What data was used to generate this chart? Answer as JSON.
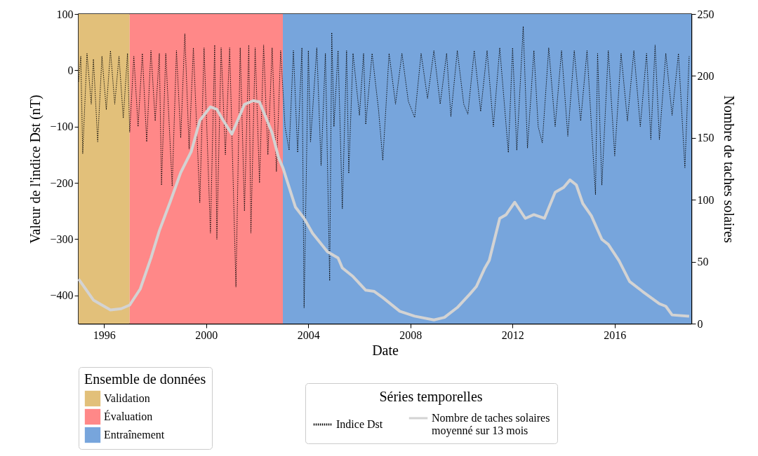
{
  "chart_data": {
    "type": "line",
    "xlabel": "Date",
    "ylabel": "Valeur de l'indice Dst (nT)",
    "y2label": "Nombre de taches solaires",
    "legend_title": "Séries temporelles",
    "annotations": [
      "Ensemble de données"
    ],
    "xlim": [
      "1995-01-01",
      "2019-01-01"
    ],
    "xticks": [
      "1996",
      "2000",
      "2004",
      "2008",
      "2012",
      "2016"
    ],
    "ylim": [
      -450,
      100
    ],
    "yticks": [
      -400,
      -300,
      -200,
      -100,
      0,
      100
    ],
    "y2lim": [
      0,
      250
    ],
    "y2ticks": [
      0,
      50,
      100,
      150,
      200,
      250
    ],
    "grid": false,
    "legend": "bottom",
    "bands": [
      {
        "axis": "x",
        "from": "1995-01-01",
        "to": "1997-01-01",
        "label": "Validation",
        "color": "#e2c07a"
      },
      {
        "axis": "x",
        "from": "1997-01-01",
        "to": "2003-01-01",
        "label": "Évaluation",
        "color": "#ff8888"
      },
      {
        "axis": "x",
        "from": "2003-01-01",
        "to": "2019-01-01",
        "label": "Entraînement",
        "color": "#77a5dc"
      }
    ],
    "series": [
      {
        "name": "Indice Dst",
        "color": "#000000",
        "type": "line",
        "line_style": "dotted",
        "axis": "y",
        "x": [
          "1995-01",
          "1995-02",
          "1995-03",
          "1995-05",
          "1995-07",
          "1995-08",
          "1995-10",
          "1995-12",
          "1996-02",
          "1996-04",
          "1996-06",
          "1996-08",
          "1996-10",
          "1996-12",
          "1997-01",
          "1997-03",
          "1997-05",
          "1997-07",
          "1997-09",
          "1997-11",
          "1998-01",
          "1998-03",
          "1998-04",
          "1998-06",
          "1998-09",
          "1998-11",
          "1999-01",
          "1999-03",
          "1999-05",
          "1999-07",
          "1999-10",
          "1999-12",
          "2000-03",
          "2000-05",
          "2000-06",
          "2000-08",
          "2000-10",
          "2000-12",
          "2001-03",
          "2001-05",
          "2001-07",
          "2001-09",
          "2001-10",
          "2001-12",
          "2002-02",
          "2002-04",
          "2002-06",
          "2002-08",
          "2002-10",
          "2002-12",
          "2003-02",
          "2003-04",
          "2003-06",
          "2003-08",
          "2003-10",
          "2003-11",
          "2004-01",
          "2004-02",
          "2004-05",
          "2004-07",
          "2004-09",
          "2004-11",
          "2004-12",
          "2005-01",
          "2005-03",
          "2005-05",
          "2005-07",
          "2005-08",
          "2005-10",
          "2006-01",
          "2006-03",
          "2006-04",
          "2006-07",
          "2006-10",
          "2006-12",
          "2007-03",
          "2007-06",
          "2007-09",
          "2007-12",
          "2008-03",
          "2008-06",
          "2008-09",
          "2008-12",
          "2009-03",
          "2009-06",
          "2009-08",
          "2009-11",
          "2010-02",
          "2010-04",
          "2010-07",
          "2010-10",
          "2011-01",
          "2011-04",
          "2011-07",
          "2011-11",
          "2012-01",
          "2012-03",
          "2012-06",
          "2012-08",
          "2012-11",
          "2013-01",
          "2013-03",
          "2013-06",
          "2013-09",
          "2013-12",
          "2014-03",
          "2014-06",
          "2014-09",
          "2014-12",
          "2015-04",
          "2015-05",
          "2015-07",
          "2015-10",
          "2016-01",
          "2016-04",
          "2016-07",
          "2016-10",
          "2017-01",
          "2017-04",
          "2017-06",
          "2017-08",
          "2017-10",
          "2018-01",
          "2018-04",
          "2018-07",
          "2018-10",
          "2018-12"
        ],
        "values": [
          -20,
          25,
          -148,
          30,
          -60,
          20,
          -127,
          25,
          -70,
          35,
          -60,
          25,
          -85,
          30,
          -110,
          25,
          -100,
          30,
          -127,
          35,
          -90,
          30,
          -204,
          30,
          -206,
          35,
          -120,
          65,
          -140,
          40,
          -235,
          40,
          -289,
          45,
          -300,
          40,
          -150,
          40,
          -385,
          40,
          -250,
          45,
          -289,
          40,
          -200,
          45,
          -150,
          40,
          -180,
          35,
          -100,
          -142,
          35,
          -146,
          40,
          -422,
          35,
          -127,
          40,
          -169,
          30,
          -374,
          67,
          -100,
          35,
          -246,
          35,
          -183,
          30,
          -80,
          30,
          -96,
          30,
          -70,
          -160,
          30,
          -60,
          30,
          -55,
          -84,
          30,
          -50,
          35,
          -60,
          30,
          -82,
          35,
          -60,
          -78,
          35,
          -73,
          35,
          -100,
          40,
          -146,
          40,
          -142,
          78,
          -138,
          35,
          -100,
          -129,
          40,
          -100,
          35,
          -117,
          35,
          -90,
          35,
          -221,
          30,
          -204,
          35,
          -152,
          30,
          -90,
          35,
          -100,
          30,
          -123,
          45,
          -123,
          30,
          -80,
          30,
          -173,
          25
        ]
      },
      {
        "name": "Nombre de taches solaires\nmoyenné sur 13 mois",
        "color": "#d3d3d3",
        "type": "line",
        "line_style": "solid",
        "axis": "y2",
        "x": [
          "1995-01",
          "1995-08",
          "1996-04",
          "1996-09",
          "1997-01",
          "1997-06",
          "1997-11",
          "1998-03",
          "1998-08",
          "1999-01",
          "1999-06",
          "1999-10",
          "2000-03",
          "2000-06",
          "2000-09",
          "2001-01",
          "2001-07",
          "2001-11",
          "2002-02",
          "2002-08",
          "2002-11",
          "2003-01",
          "2003-07",
          "2003-11",
          "2004-03",
          "2004-10",
          "2005-03",
          "2005-05",
          "2005-10",
          "2006-04",
          "2006-08",
          "2006-12",
          "2007-08",
          "2008-03",
          "2008-12",
          "2009-05",
          "2009-11",
          "2010-05",
          "2010-08",
          "2010-12",
          "2011-02",
          "2011-07",
          "2011-10",
          "2012-02",
          "2012-07",
          "2012-11",
          "2013-04",
          "2013-09",
          "2014-01",
          "2014-04",
          "2014-07",
          "2014-10",
          "2015-02",
          "2015-07",
          "2015-10",
          "2016-03",
          "2016-08",
          "2017-02",
          "2017-10",
          "2018-01",
          "2018-04",
          "2018-12"
        ],
        "values": [
          36,
          19,
          11,
          12,
          15,
          28,
          53,
          75,
          98,
          122,
          139,
          164,
          175,
          173,
          164,
          153,
          177,
          180,
          179,
          154,
          134,
          126,
          94,
          85,
          73,
          58,
          53,
          45,
          38,
          27,
          26,
          21,
          10,
          6,
          3,
          5,
          13,
          24,
          30,
          45,
          51,
          85,
          88,
          98,
          85,
          88,
          85,
          106,
          110,
          116,
          112,
          97,
          87,
          68,
          64,
          51,
          34,
          26,
          16,
          14,
          7,
          6
        ]
      }
    ]
  }
}
